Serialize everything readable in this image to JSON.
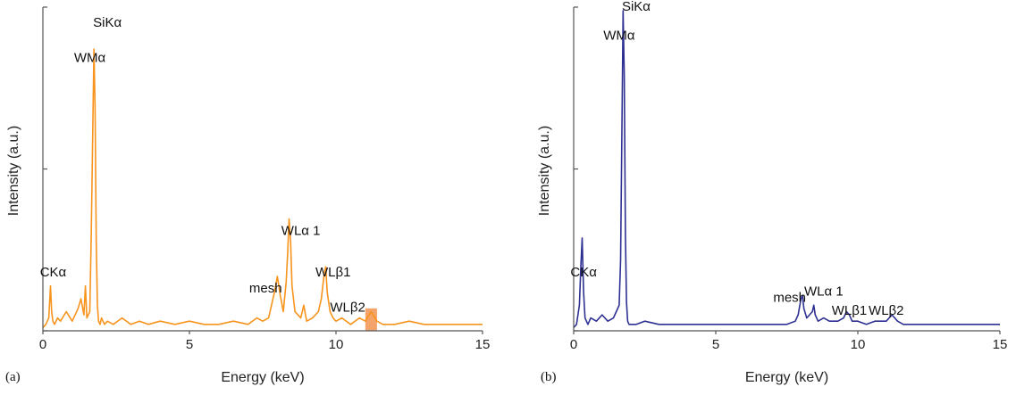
{
  "chart_data": [
    {
      "type": "line",
      "panel_label": "(a)",
      "xlabel": "Energy (keV)",
      "ylabel": "Intensity (a.u.)",
      "xlim": [
        0,
        15
      ],
      "ylim": [
        0,
        100
      ],
      "x_ticks": [
        "0",
        "5",
        "10",
        "15"
      ],
      "color": "#f7941d",
      "grid": false,
      "series": [
        {
          "x": [
            0.0,
            0.1,
            0.2,
            0.26,
            0.3,
            0.34,
            0.4,
            0.5,
            0.6,
            0.8,
            1.0,
            1.2,
            1.3,
            1.4,
            1.45,
            1.5,
            1.6,
            1.65,
            1.7,
            1.74,
            1.78,
            1.82,
            1.86,
            1.9,
            1.95,
            2.0,
            2.1,
            2.2,
            2.4,
            2.7,
            3.0,
            3.3,
            3.6,
            4.0,
            4.5,
            5.0,
            5.5,
            6.0,
            6.5,
            7.0,
            7.3,
            7.5,
            7.7,
            7.9,
            8.0,
            8.1,
            8.2,
            8.3,
            8.35,
            8.4,
            8.45,
            8.5,
            8.6,
            8.7,
            8.8,
            8.9,
            9.0,
            9.2,
            9.4,
            9.5,
            9.6,
            9.65,
            9.7,
            9.8,
            9.9,
            10.0,
            10.2,
            10.5,
            10.8,
            11.0,
            11.2,
            11.4,
            11.6,
            12.0,
            12.5,
            13.0,
            13.5,
            14.0,
            14.5,
            15.0
          ],
          "y": [
            1,
            2,
            4,
            14,
            6,
            3,
            2,
            4,
            3,
            6,
            3,
            7,
            10,
            5,
            14,
            4,
            6,
            30,
            62,
            88,
            70,
            28,
            8,
            3,
            2,
            4,
            2,
            3,
            2,
            4,
            2,
            3,
            2,
            3,
            2,
            3,
            2,
            2,
            3,
            2,
            4,
            3,
            4,
            12,
            17,
            11,
            6,
            15,
            24,
            35,
            28,
            14,
            6,
            5,
            4,
            8,
            3,
            4,
            6,
            10,
            18,
            20,
            12,
            6,
            4,
            3,
            4,
            2,
            4,
            3,
            6,
            3,
            2,
            2,
            3,
            2,
            2,
            2,
            2,
            2
          ]
        }
      ],
      "annotations": [
        {
          "text": "SiKα",
          "x": 2.2,
          "y": 95
        },
        {
          "text": "WMα",
          "x": 1.6,
          "y": 84
        },
        {
          "text": "CKα",
          "x": 0.35,
          "y": 17
        },
        {
          "text": "WLα 1",
          "x": 8.8,
          "y": 30
        },
        {
          "text": "mesh",
          "x": 7.6,
          "y": 12
        },
        {
          "text": "WLβ1",
          "x": 9.9,
          "y": 17
        },
        {
          "text": "WLβ2",
          "x": 10.4,
          "y": 6
        }
      ],
      "highlight": {
        "x0": 11.0,
        "x1": 11.4,
        "y1": 7,
        "color": "#f4a36a"
      }
    },
    {
      "type": "line",
      "panel_label": "(b)",
      "xlabel": "Energy (keV)",
      "ylabel": "Intensity (a.u.)",
      "xlim": [
        0,
        15
      ],
      "ylim": [
        0,
        100
      ],
      "x_ticks": [
        "0",
        "5",
        "10",
        "15"
      ],
      "color": "#2e3192",
      "grid": false,
      "series": [
        {
          "x": [
            0.0,
            0.1,
            0.2,
            0.25,
            0.3,
            0.35,
            0.4,
            0.5,
            0.6,
            0.8,
            1.0,
            1.2,
            1.4,
            1.5,
            1.6,
            1.65,
            1.7,
            1.74,
            1.78,
            1.82,
            1.86,
            1.9,
            1.95,
            2.0,
            2.2,
            2.5,
            3.0,
            3.5,
            4.0,
            4.5,
            5.0,
            5.5,
            6.0,
            6.5,
            7.0,
            7.5,
            7.8,
            7.9,
            8.0,
            8.05,
            8.1,
            8.2,
            8.3,
            8.4,
            8.45,
            8.5,
            8.6,
            8.8,
            9.0,
            9.3,
            9.5,
            9.6,
            9.7,
            9.8,
            10.0,
            10.3,
            10.6,
            11.0,
            11.2,
            11.4,
            11.6,
            12.0,
            12.5,
            13.0,
            13.5,
            14.0,
            14.5,
            15.0
          ],
          "y": [
            1,
            2,
            8,
            20,
            29,
            12,
            4,
            2,
            4,
            3,
            5,
            3,
            4,
            6,
            8,
            22,
            66,
            100,
            80,
            30,
            9,
            3,
            2,
            2,
            2,
            3,
            2,
            2,
            2,
            2,
            2,
            2,
            2,
            2,
            2,
            2,
            3,
            5,
            10,
            11,
            7,
            4,
            5,
            6,
            8,
            5,
            3,
            4,
            3,
            3,
            4,
            6,
            5,
            3,
            3,
            2,
            3,
            3,
            5,
            3,
            2,
            2,
            2,
            2,
            2,
            2,
            2,
            2
          ]
        }
      ],
      "annotations": [
        {
          "text": "SiKα",
          "x": 2.2,
          "y": 100
        },
        {
          "text": "WMα",
          "x": 1.6,
          "y": 91
        },
        {
          "text": "CKα",
          "x": 0.35,
          "y": 17
        },
        {
          "text": "mesh",
          "x": 7.6,
          "y": 9
        },
        {
          "text": "WLα 1",
          "x": 8.8,
          "y": 11
        },
        {
          "text": "WLβ1",
          "x": 9.7,
          "y": 5
        },
        {
          "text": "WLβ2",
          "x": 11.0,
          "y": 5
        }
      ]
    }
  ]
}
